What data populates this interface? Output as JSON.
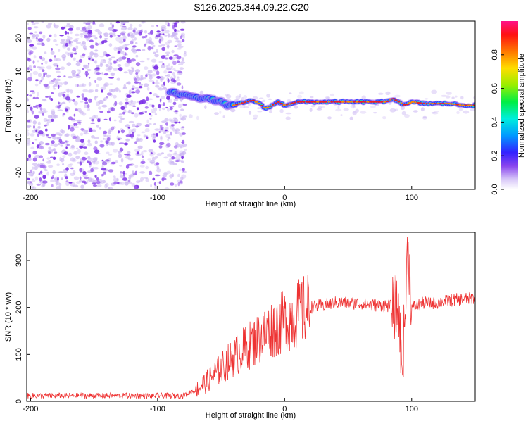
{
  "title": "S126.2025.344.09.22.C20",
  "chart_data": [
    {
      "type": "heatmap",
      "xlabel": "Height of straight line (km)",
      "ylabel": "Frequency (Hz)",
      "xlim": [
        -203,
        150
      ],
      "ylim": [
        -25,
        25
      ],
      "xticks": [
        -200,
        -100,
        0,
        100
      ],
      "yticks": [
        -20,
        -10,
        0,
        10,
        20
      ],
      "noise_region_x": [
        -203,
        -78
      ],
      "ridge": {
        "x": [
          -90,
          -85,
          -80,
          -75,
          -70,
          -65,
          -60,
          -55,
          -50,
          -45,
          -40,
          -35,
          -30,
          -25,
          -20,
          -15,
          -10,
          -5,
          0,
          10,
          20,
          30,
          40,
          50,
          60,
          70,
          80,
          85,
          90,
          95,
          100,
          110,
          120,
          130,
          140,
          150
        ],
        "freq": [
          4,
          3.5,
          3,
          3,
          2.5,
          2,
          2,
          1.5,
          1,
          0,
          0,
          0.5,
          1,
          1.5,
          0.5,
          -1,
          0,
          1,
          0,
          1,
          1,
          1,
          1,
          1,
          1,
          1,
          1,
          2,
          1,
          0,
          1,
          0.5,
          0.5,
          0.5,
          0,
          0
        ]
      },
      "colorbar": {
        "label": "Normalized spectral amplitude",
        "range": [
          0,
          1
        ],
        "ticks": [
          "0.0",
          "0.2",
          "0.4",
          "0.6",
          "0.8"
        ]
      }
    },
    {
      "type": "line",
      "xlabel": "Height of straight line (km)",
      "ylabel": "SNR (10 * v/v)",
      "xlim": [
        -203,
        150
      ],
      "ylim": [
        0,
        360
      ],
      "xticks": [
        -200,
        -100,
        0,
        100
      ],
      "yticks": [
        0,
        100,
        200,
        300
      ],
      "color": "#ee3333",
      "series": [
        {
          "name": "SNR",
          "envelope_x": [
            -203,
            -80,
            -70,
            -60,
            -50,
            -40,
            -30,
            -20,
            -10,
            0,
            10,
            20,
            30,
            40,
            50,
            60,
            70,
            80,
            85,
            90,
            92,
            95,
            97,
            100,
            110,
            120,
            130,
            140,
            150
          ],
          "envelope_y": [
            12,
            12,
            25,
            45,
            70,
            95,
            115,
            135,
            155,
            170,
            185,
            200,
            205,
            210,
            210,
            208,
            205,
            205,
            200,
            200,
            60,
            190,
            340,
            200,
            210,
            210,
            215,
            218,
            220
          ]
        }
      ]
    }
  ]
}
